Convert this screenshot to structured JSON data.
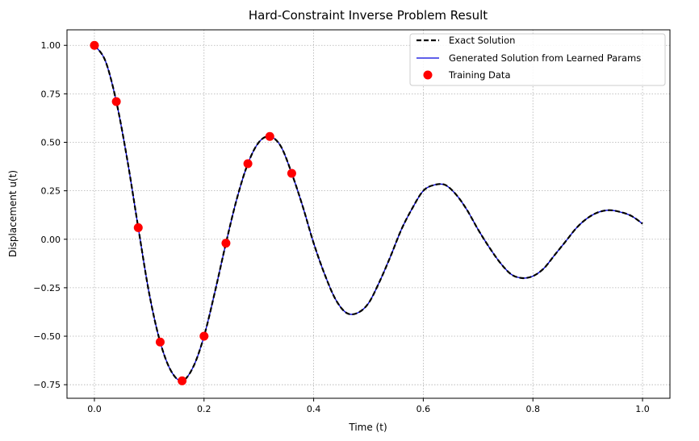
{
  "chart_data": {
    "type": "line",
    "title": "Hard-Constraint Inverse Problem Result",
    "xlabel": "Time (t)",
    "ylabel": "Displacement u(t)",
    "xlim": [
      -0.05,
      1.05
    ],
    "ylim": [
      -0.82,
      1.08
    ],
    "xticks": [
      0.0,
      0.2,
      0.4,
      0.6,
      0.8,
      1.0
    ],
    "xtick_labels": [
      "0.0",
      "0.2",
      "0.4",
      "0.6",
      "0.8",
      "1.0"
    ],
    "yticks": [
      -0.75,
      -0.5,
      -0.25,
      0.0,
      0.25,
      0.5,
      0.75,
      1.0
    ],
    "ytick_labels": [
      "−0.75",
      "−0.50",
      "−0.25",
      "0.00",
      "0.25",
      "0.50",
      "0.75",
      "1.00"
    ],
    "grid": true,
    "legend_position": "top-right",
    "series": [
      {
        "name": "Exact Solution",
        "style": "dashed",
        "color": "#000000",
        "x": [
          0.0,
          0.02,
          0.04,
          0.06,
          0.08,
          0.1,
          0.12,
          0.14,
          0.16,
          0.18,
          0.2,
          0.22,
          0.24,
          0.26,
          0.28,
          0.3,
          0.32,
          0.34,
          0.36,
          0.38,
          0.4,
          0.42,
          0.44,
          0.46,
          0.48,
          0.5,
          0.52,
          0.54,
          0.56,
          0.58,
          0.6,
          0.62,
          0.64,
          0.66,
          0.68,
          0.7,
          0.72,
          0.74,
          0.76,
          0.78,
          0.8,
          0.82,
          0.84,
          0.86,
          0.88,
          0.9,
          0.92,
          0.94,
          0.96,
          0.98,
          1.0
        ],
        "y": [
          1.0,
          0.92,
          0.71,
          0.41,
          0.06,
          -0.28,
          -0.53,
          -0.68,
          -0.73,
          -0.66,
          -0.5,
          -0.27,
          -0.02,
          0.21,
          0.39,
          0.5,
          0.53,
          0.48,
          0.34,
          0.17,
          -0.02,
          -0.18,
          -0.31,
          -0.38,
          -0.38,
          -0.33,
          -0.22,
          -0.09,
          0.05,
          0.16,
          0.25,
          0.28,
          0.28,
          0.23,
          0.15,
          0.05,
          -0.04,
          -0.12,
          -0.18,
          -0.2,
          -0.19,
          -0.15,
          -0.08,
          -0.01,
          0.06,
          0.11,
          0.14,
          0.15,
          0.14,
          0.12,
          0.08
        ]
      },
      {
        "name": "Generated Solution from Learned Params",
        "style": "solid",
        "color": "#0000dd",
        "x": [
          0.0,
          0.02,
          0.04,
          0.06,
          0.08,
          0.1,
          0.12,
          0.14,
          0.16,
          0.18,
          0.2,
          0.22,
          0.24,
          0.26,
          0.28,
          0.3,
          0.32,
          0.34,
          0.36,
          0.38,
          0.4,
          0.42,
          0.44,
          0.46,
          0.48,
          0.5,
          0.52,
          0.54,
          0.56,
          0.58,
          0.6,
          0.62,
          0.64,
          0.66,
          0.68,
          0.7,
          0.72,
          0.74,
          0.76,
          0.78,
          0.8,
          0.82,
          0.84,
          0.86,
          0.88,
          0.9,
          0.92,
          0.94,
          0.96,
          0.98,
          1.0
        ],
        "y": [
          1.0,
          0.92,
          0.71,
          0.41,
          0.06,
          -0.28,
          -0.53,
          -0.68,
          -0.73,
          -0.66,
          -0.5,
          -0.27,
          -0.02,
          0.21,
          0.39,
          0.5,
          0.53,
          0.48,
          0.34,
          0.17,
          -0.02,
          -0.18,
          -0.31,
          -0.38,
          -0.38,
          -0.33,
          -0.22,
          -0.09,
          0.05,
          0.16,
          0.25,
          0.28,
          0.28,
          0.23,
          0.15,
          0.05,
          -0.04,
          -0.12,
          -0.18,
          -0.2,
          -0.19,
          -0.15,
          -0.08,
          -0.01,
          0.06,
          0.11,
          0.14,
          0.15,
          0.14,
          0.12,
          0.08
        ]
      },
      {
        "name": "Training Data",
        "style": "markers",
        "color": "#ff0000",
        "x": [
          0.0,
          0.04,
          0.08,
          0.12,
          0.16,
          0.2,
          0.24,
          0.28,
          0.32,
          0.36
        ],
        "y": [
          1.0,
          0.71,
          0.06,
          -0.53,
          -0.73,
          -0.5,
          -0.02,
          0.39,
          0.53,
          0.34
        ]
      }
    ]
  }
}
